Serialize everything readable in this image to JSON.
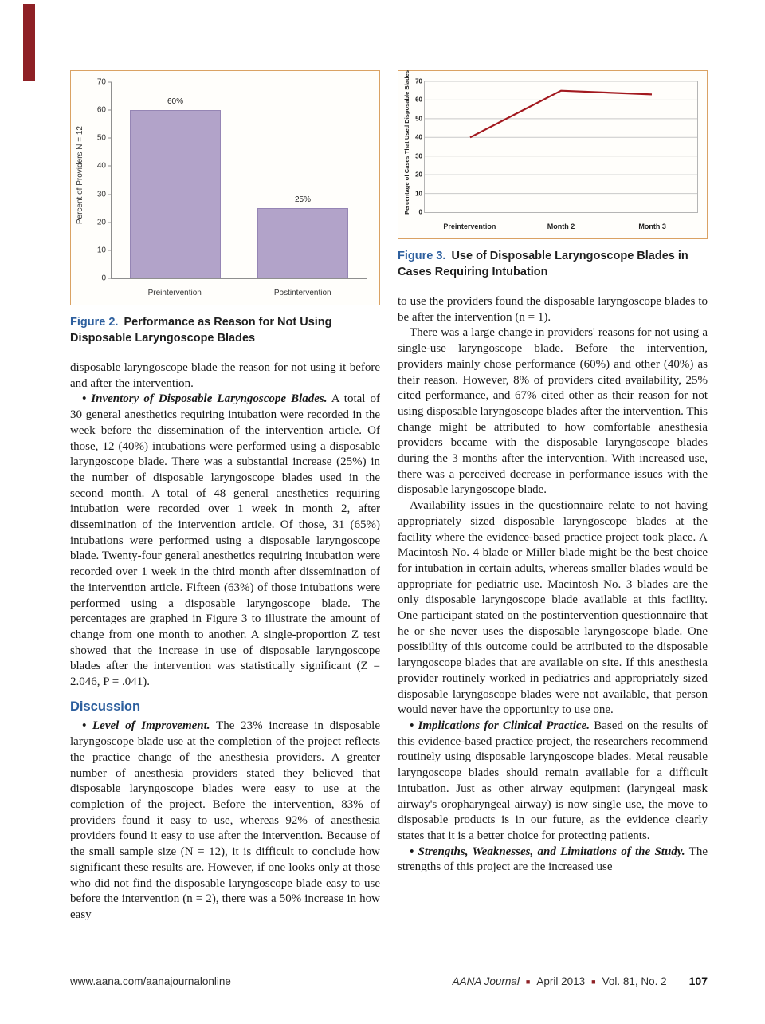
{
  "figures": {
    "fig2": {
      "label": "Figure 2.",
      "caption": "Performance as Reason for Not Using Disposable Laryngoscope Blades"
    },
    "fig3": {
      "label": "Figure 3.",
      "caption": "Use of Disposable Laryngoscope Blades in Cases Requiring Intubation"
    }
  },
  "chart_data": [
    {
      "type": "bar",
      "title": "",
      "categories": [
        "Preintervention",
        "Postintervention"
      ],
      "values": [
        60,
        25
      ],
      "bar_labels": [
        "60%",
        "25%"
      ],
      "xlabel": "",
      "ylabel": "Percent of Providers N = 12",
      "ylim": [
        0,
        70
      ],
      "yticks": [
        0,
        10,
        20,
        30,
        40,
        50,
        60,
        70
      ],
      "bar_color": "#b2a3c9",
      "bar_border_color": "#9585b4",
      "grid": false,
      "legend": "none"
    },
    {
      "type": "line",
      "title": "",
      "categories": [
        "Preintervention",
        "Month 2",
        "Month 3"
      ],
      "values": [
        40,
        65,
        63
      ],
      "xlabel": "",
      "ylabel": "Percentage of Cases That Used Disposable Blades",
      "ylim": [
        0,
        70
      ],
      "yticks": [
        0,
        10,
        20,
        30,
        40,
        50,
        60,
        70
      ],
      "line_color": "#a2191f",
      "grid": true,
      "legend": "none"
    }
  ],
  "article": {
    "left": [
      {
        "type": "para",
        "indent": false,
        "text": "disposable laryngoscope blade the reason for not using it before and after the intervention."
      },
      {
        "type": "para",
        "indent": true,
        "lead": "• Inventory of Disposable Laryngoscope Blades.",
        "text": "A total of 30 general anesthetics requiring intubation were recorded in the week before the dissemination of the intervention article. Of those, 12 (40%) intubations were performed using a disposable laryngoscope blade. There was a substantial increase (25%) in the number of disposable laryngoscope blades used in the second month. A total of 48 general anesthetics requiring intubation were recorded over 1 week in month 2, after dissemination of the intervention article. Of those, 31 (65%) intubations were performed using a disposable laryngoscope blade. Twenty-four general anesthetics requiring intubation were recorded over 1 week in the third month after dissemination of the intervention article. Fifteen (63%) of those intubations were performed using a disposable laryngoscope blade. The percentages are graphed in Figure 3 to illustrate the amount of change from one month to another. A single-proportion Z test showed that the increase in use of disposable laryngoscope blades after the intervention was statistically significant (Z = 2.046, P = .041)."
      },
      {
        "type": "heading",
        "text": "Discussion"
      },
      {
        "type": "para",
        "indent": true,
        "lead": "• Level of Improvement.",
        "text": "The 23% increase in disposable laryngoscope blade use at the completion of the project reflects the practice change of the anesthesia providers. A greater number of anesthesia providers stated they believed that disposable laryngoscope blades were easy to use at the completion of the project. Before the intervention, 83% of providers found it easy to use, whereas 92% of anesthesia providers found it easy to use after the intervention. Because of the small sample size (N = 12), it is difficult to conclude how significant these results are. However, if one looks only at those who did not find the disposable laryngoscope blade easy to use before the intervention (n = 2), there was a 50% increase in how easy"
      }
    ],
    "right": [
      {
        "type": "para",
        "indent": false,
        "text": "to use the providers found the disposable laryngoscope blades to be after the intervention (n = 1)."
      },
      {
        "type": "para",
        "indent": true,
        "text": "There was a large change in providers' reasons for not using a single-use laryngoscope blade. Before the intervention, providers mainly chose performance (60%) and other (40%) as their reason. However, 8% of providers cited availability, 25% cited performance, and 67% cited other as their reason for not using disposable laryngoscope blades after the intervention. This change might be attributed to how comfortable anesthesia providers became with the disposable laryngoscope blades during the 3 months after the intervention. With increased use, there was a perceived decrease in performance issues with the disposable laryngoscope blade."
      },
      {
        "type": "para",
        "indent": true,
        "text": "Availability issues in the questionnaire relate to not having appropriately sized disposable laryngoscope blades at the facility where the evidence-based practice project took place. A Macintosh No. 4 blade or Miller blade might be the best choice for intubation in certain adults, whereas smaller blades would be appropriate for pediatric use. Macintosh No. 3 blades are the only disposable laryngoscope blade available at this facility. One participant stated on the postintervention questionnaire that he or she never uses the disposable laryngoscope blade. One possibility of this outcome could be attributed to the disposable laryngoscope blades that are available on site. If this anesthesia provider routinely worked in pediatrics and appropriately sized disposable laryngoscope blades were not available, that person would never have the opportunity to use one."
      },
      {
        "type": "para",
        "indent": true,
        "lead": "• Implications for Clinical Practice.",
        "text": "Based on the results of this evidence-based practice project, the researchers recommend routinely using disposable laryngoscope blades. Metal reusable laryngoscope blades should remain available for a difficult intubation. Just as other airway equipment (laryngeal mask airway's oropharyngeal airway) is now single use, the move to disposable products is in our future, as the evidence clearly states that it is a better choice for protecting patients."
      },
      {
        "type": "para",
        "indent": true,
        "lead": "• Strengths, Weaknesses, and Limitations of the Study.",
        "text": "The strengths of this project are the increased use"
      }
    ]
  },
  "footer": {
    "website": "www.aana.com/aanajournalonline",
    "journal": "AANA Journal",
    "separator": "■",
    "issue": "April 2013",
    "volume": "Vol. 81, No. 2",
    "page_number": "107"
  }
}
